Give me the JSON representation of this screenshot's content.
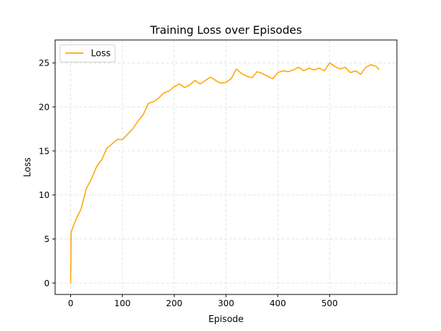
{
  "chart_data": {
    "type": "line",
    "title": "Training Loss over Episodes",
    "xlabel": "Episode",
    "ylabel": "Loss",
    "xlim": [
      -30,
      630
    ],
    "ylim": [
      -1.3,
      27.6
    ],
    "xticks": [
      0,
      100,
      200,
      300,
      400,
      500
    ],
    "yticks": [
      0,
      5,
      10,
      15,
      20,
      25
    ],
    "grid": true,
    "legend": {
      "position": "top-left",
      "entries": [
        "Loss"
      ]
    },
    "series": [
      {
        "name": "Loss",
        "color": "#FFA500",
        "x": [
          0,
          1,
          10,
          20,
          30,
          40,
          50,
          60,
          70,
          80,
          90,
          100,
          110,
          120,
          130,
          140,
          150,
          160,
          170,
          180,
          190,
          200,
          210,
          220,
          230,
          240,
          250,
          260,
          270,
          280,
          290,
          300,
          310,
          320,
          330,
          340,
          350,
          360,
          370,
          380,
          390,
          400,
          410,
          420,
          430,
          440,
          450,
          460,
          470,
          480,
          490,
          500,
          510,
          520,
          530,
          540,
          550,
          560,
          570,
          580,
          590,
          595
        ],
        "y": [
          0,
          5.8,
          7.2,
          8.4,
          10.7,
          11.8,
          13.2,
          14.0,
          15.3,
          15.8,
          16.3,
          16.3,
          16.9,
          17.5,
          18.4,
          19.1,
          20.4,
          20.6,
          21.0,
          21.6,
          21.8,
          22.3,
          22.6,
          22.2,
          22.5,
          23.0,
          22.6,
          23.0,
          23.4,
          23.0,
          22.7,
          22.8,
          23.2,
          24.3,
          23.8,
          23.5,
          23.3,
          24.0,
          23.8,
          23.5,
          23.2,
          23.9,
          24.1,
          24.0,
          24.2,
          24.5,
          24.1,
          24.4,
          24.2,
          24.4,
          24.1,
          25.0,
          24.6,
          24.3,
          24.5,
          23.9,
          24.1,
          23.7,
          24.5,
          24.8,
          24.6,
          24.3
        ]
      }
    ]
  }
}
